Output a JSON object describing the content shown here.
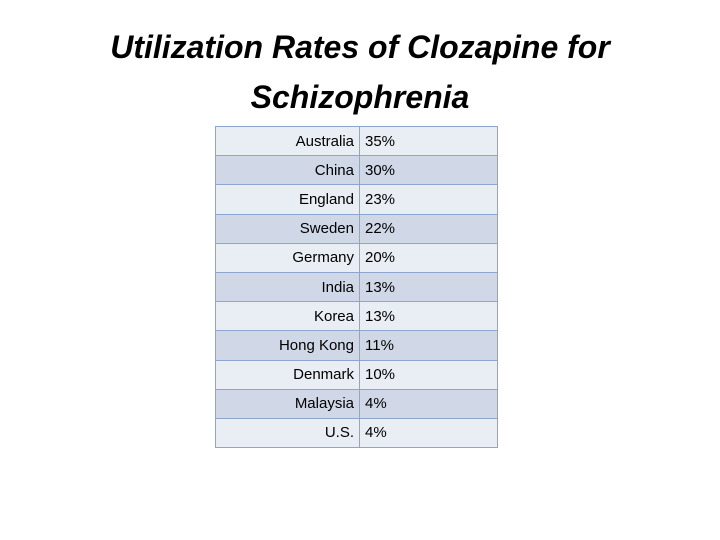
{
  "title_lines": [
    "Utilization Rates of Clozapine for",
    "Schizophrenia"
  ],
  "table": {
    "rows": [
      [
        "Australia",
        "35%"
      ],
      [
        "China",
        "30%"
      ],
      [
        "England",
        "23%"
      ],
      [
        "Sweden",
        "22%"
      ],
      [
        "Germany",
        "20%"
      ],
      [
        "India",
        "13%"
      ],
      [
        "Korea",
        "13%"
      ],
      [
        "Hong Kong",
        "11%"
      ],
      [
        "Denmark",
        "10%"
      ],
      [
        "Malaysia",
        "4%"
      ],
      [
        "U.S.",
        "4%"
      ]
    ]
  }
}
